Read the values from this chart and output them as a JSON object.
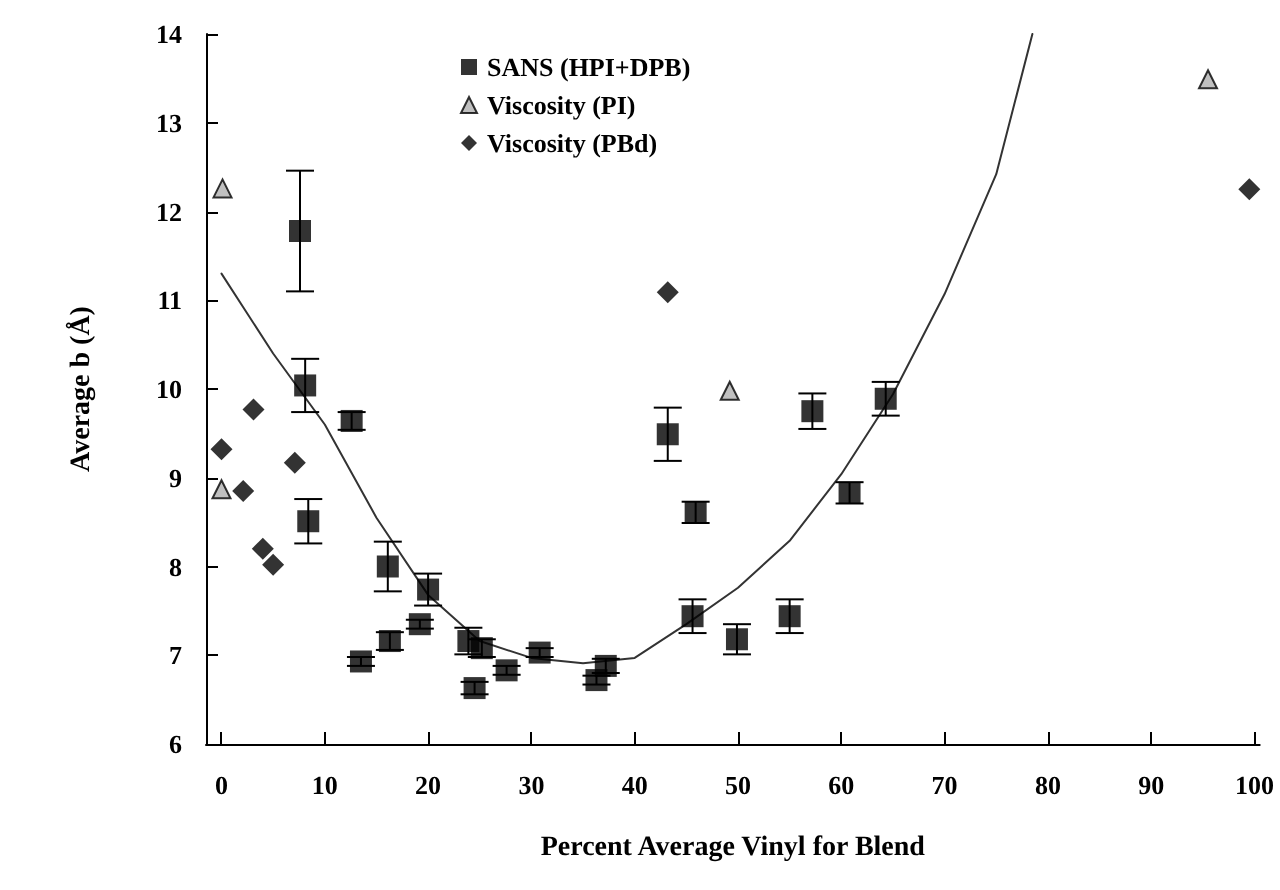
{
  "chart_data": {
    "type": "scatter",
    "xlabel": "Percent Average Vinyl for Blend",
    "ylabel": "Average b (Å)",
    "xlim": [
      -1.5,
      100.5
    ],
    "ylim": [
      6,
      14
    ],
    "xticks": [
      0,
      10,
      20,
      30,
      40,
      50,
      60,
      70,
      80,
      90,
      100
    ],
    "yticks": [
      6,
      7,
      8,
      9,
      10,
      11,
      12,
      13,
      14
    ],
    "grid": false,
    "legend": "top",
    "series": [
      {
        "name": "SANS (HPI+DPB)",
        "color": "#000000",
        "marker": "square",
        "x": [
          7.6,
          8.1,
          8.4,
          12.6,
          13.5,
          16.1,
          16.3,
          19.2,
          20,
          23.9,
          24.5,
          25.2,
          27.6,
          30.8,
          36.3,
          37.2,
          43.2,
          45.9,
          45.6,
          49.9,
          55.0,
          57.2,
          60.8,
          64.3
        ],
        "values": [
          11.78,
          10.04,
          8.51,
          9.64,
          6.93,
          8.0,
          7.16,
          7.35,
          7.74,
          7.16,
          6.63,
          7.08,
          6.83,
          7.03,
          6.72,
          6.88,
          9.49,
          8.61,
          7.44,
          7.18,
          7.44,
          9.75,
          8.83,
          9.89
        ],
        "errors": [
          0.68,
          0.3,
          0.25,
          0.1,
          0.05,
          0.28,
          0.1,
          0.05,
          0.18,
          0.15,
          0.07,
          0.1,
          0.05,
          0.05,
          0.05,
          0.08,
          0.3,
          0.12,
          0.19,
          0.17,
          0.19,
          0.2,
          0.12,
          0.19
        ]
      },
      {
        "name": "Viscosity (PI)",
        "color": "#b0b0b0",
        "marker": "triangle",
        "x": [
          0.1,
          0,
          49.2,
          95.5
        ],
        "values": [
          12.26,
          8.87,
          9.98,
          13.49
        ]
      },
      {
        "name": "Viscosity (PBd)",
        "color": "#000000",
        "marker": "diamond",
        "x": [
          0,
          2.1,
          3.1,
          4.0,
          5.0,
          7.1,
          43.2,
          99.5
        ],
        "values": [
          9.32,
          8.85,
          9.77,
          8.2,
          8.02,
          9.17,
          11.09,
          12.25
        ]
      },
      {
        "type": "line",
        "color": "#333333",
        "marker": "none",
        "x": [
          0,
          5,
          10,
          15,
          20,
          25,
          30,
          35,
          40,
          45,
          50,
          55,
          60,
          65,
          70,
          75,
          78.5
        ],
        "values": [
          11.3,
          10.4,
          9.6,
          8.55,
          7.68,
          7.16,
          6.97,
          6.91,
          6.97,
          7.35,
          7.76,
          8.29,
          9.04,
          9.94,
          11.07,
          12.42,
          14
        ]
      }
    ]
  }
}
